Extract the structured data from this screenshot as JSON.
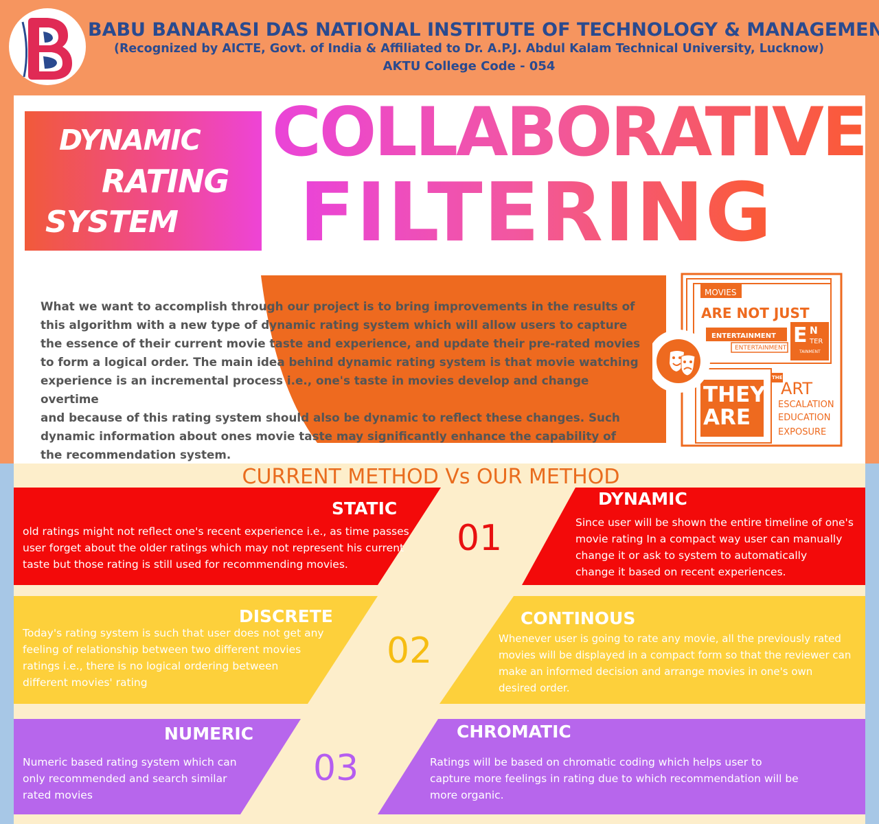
{
  "header": {
    "institute_name": "BABU BANARASI DAS NATIONAL INSTITUTE OF TECHNOLOGY & MANAGEMENT",
    "recognition": "(Recognized by AICTE, Govt. of India & Affiliated to Dr. A.P.J. Abdul Kalam Technical University, Lucknow)",
    "college_code": "AKTU College Code - 054"
  },
  "hero": {
    "subtitle_words": [
      "DYNAMIC",
      "RATING",
      "SYSTEM"
    ],
    "title_line1": "COLLABORATIVE",
    "title_line2": "FILTERING"
  },
  "intro_text": "What we want to accomplish through our project is to bring improvements in the results of\nthis algorithm with a new type of dynamic rating system which will allow users to capture\nthe essence of their current movie taste and experience, and update their pre-rated movies\nto form a logical order. The main idea behind dynamic rating system is that movie watching\nexperience is an incremental process i.e., one's taste in movies develop and change overtime\nand because of this rating system should also be dynamic to reflect these changes. Such\ndynamic information about ones movie taste may significantly enhance the capability of\nthe recommendation system.",
  "movies_card": {
    "tag": "MOVIES",
    "are_not_just": "ARE NOT JUST",
    "entertainment_1": "ENTERTAINMENT",
    "entertainment_2": "ENTERTAINMENT",
    "en": "E",
    "n": "N",
    "ter": "TER",
    "tainment": "TAINMENT",
    "they": "THEY",
    "are": "ARE",
    "the": "THE",
    "art": "ART",
    "escalation": "ESCALATION",
    "education": "EDUCATION",
    "exposure": "EXPOSURE",
    "icon": "theater-masks-icon"
  },
  "comparison": {
    "title": "CURRENT METHOD Vs OUR METHOD",
    "rows": [
      {
        "number": "01",
        "color": "#f30a0a",
        "number_color": "#e81010",
        "current_label": "STATIC",
        "current_desc": "old ratings might not reflect one's recent experience i.e., as time passes\nuser forget about the older ratings which may not represent his current\ntaste but those rating is still used for recommending movies.",
        "our_label": "DYNAMIC",
        "our_desc": "Since user will be shown the entire timeline of one's\nmovie rating In a compact way user can manually\nchange it or ask to system to automatically\nchange it based on recent experiences."
      },
      {
        "number": "02",
        "color": "#fdd03b",
        "number_color": "#f6bd12",
        "current_label": "DISCRETE",
        "current_desc": "Today's rating system is such that user does not get any\nfeeling of relationship between two different movies\nratings i.e., there is no logical ordering between\ndifferent movies' rating",
        "our_label": "CONTINOUS",
        "our_desc": "Whenever user is going to rate any movie, all the previously rated\nmovies will be displayed in a compact form so that the reviewer can\nmake an informed decision and arrange movies in one's own\ndesired order."
      },
      {
        "number": "03",
        "color": "#b766ec",
        "number_color": "#b55df0",
        "current_label": "NUMERIC",
        "current_desc": "Numeric based rating system which can\nonly recommended and search similar\nrated movies",
        "our_label": "CHROMATIC",
        "our_desc": "Ratings will be based on chromatic coding which helps user to\ncapture more feelings in rating due to which recommendation will be\nmore organic."
      }
    ]
  },
  "colors": {
    "header_bg": "#f6955f",
    "header_text": "#2a4a8f",
    "orange_accent": "#ee6a1f",
    "side_blue": "#a7c7e6",
    "cream": "#fdeecb"
  }
}
